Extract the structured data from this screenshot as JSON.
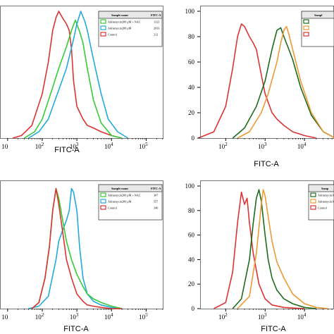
{
  "chart_data": [
    {
      "type": "line",
      "panel": "top-left",
      "xscale": "log",
      "xlabel": "FITC-A",
      "x_ticks": [
        "10",
        "10^2",
        "10^3",
        "10^4",
        "10^5"
      ],
      "y_ticks": [],
      "legend": {
        "placement": "top-right",
        "header": [
          "Sample name",
          "FITC-A"
        ],
        "rows": [
          {
            "name": "Adriamycin200 μM + NAC",
            "value": "1323",
            "color": "#33cc33"
          },
          {
            "name": "Adriamycin200 μM",
            "value": "2033",
            "color": "#22aadd"
          },
          {
            "name": "Control",
            "value": "312",
            "color": "#dd3333"
          }
        ]
      },
      "series": [
        {
          "color": "#dd3333",
          "x": [
            14,
            25,
            50,
            100,
            150,
            200,
            250,
            300,
            400,
            500,
            600,
            700,
            800,
            1000,
            1500,
            2000,
            3000,
            5000,
            10000,
            20000
          ],
          "y": [
            0,
            2,
            10,
            35,
            60,
            85,
            95,
            100,
            94,
            90,
            85,
            70,
            45,
            25,
            15,
            10,
            8,
            5,
            2,
            0
          ]
        },
        {
          "color": "#33cc33",
          "x": [
            30,
            60,
            100,
            200,
            300,
            500,
            700,
            900,
            1200,
            1500,
            2000,
            3000,
            5000,
            10000,
            20000
          ],
          "y": [
            0,
            5,
            15,
            40,
            55,
            72,
            85,
            93,
            84,
            75,
            55,
            30,
            12,
            2,
            0
          ]
        },
        {
          "color": "#22aadd",
          "x": [
            40,
            80,
            150,
            300,
            500,
            800,
            1000,
            1300,
            1700,
            2000,
            3000,
            5000,
            8000,
            15000,
            30000
          ],
          "y": [
            0,
            5,
            15,
            38,
            55,
            78,
            90,
            100,
            92,
            85,
            62,
            35,
            15,
            5,
            0
          ]
        }
      ]
    },
    {
      "type": "line",
      "panel": "top-right",
      "xscale": "log",
      "xlabel": "FITC-A",
      "x_ticks": [
        "10^2",
        "10^3",
        "10^4"
      ],
      "y_ticks": [
        "0",
        "20",
        "40",
        "60",
        "80",
        "100"
      ],
      "ylim": [
        0,
        100
      ],
      "legend": {
        "placement": "top-right",
        "header": [
          "Sampl"
        ],
        "rows": [
          {
            "name": "",
            "value": "",
            "color": "#1d6b1d"
          },
          {
            "name": "",
            "value": "",
            "color": "#ee9933"
          },
          {
            "name": "",
            "value": "",
            "color": "#dd3333"
          }
        ]
      },
      "series": [
        {
          "color": "#dd3333",
          "x": [
            20,
            50,
            100,
            150,
            200,
            250,
            300,
            400,
            500,
            600,
            800,
            1000,
            1500,
            2000,
            3000,
            5000,
            10000,
            20000
          ],
          "y": [
            0,
            5,
            25,
            55,
            80,
            90,
            88,
            80,
            75,
            70,
            50,
            35,
            20,
            15,
            10,
            5,
            2,
            0
          ]
        },
        {
          "color": "#1d6b1d",
          "x": [
            150,
            300,
            600,
            1000,
            1500,
            2000,
            2500,
            3000,
            4000,
            5000,
            8000,
            15000,
            30000,
            60000
          ],
          "y": [
            0,
            8,
            25,
            45,
            70,
            85,
            87,
            80,
            70,
            62,
            40,
            18,
            5,
            0
          ]
        },
        {
          "color": "#ee9933",
          "x": [
            200,
            400,
            800,
            1200,
            2000,
            2500,
            3000,
            3500,
            4000,
            5000,
            8000,
            15000,
            30000,
            60000
          ],
          "y": [
            0,
            5,
            20,
            35,
            60,
            75,
            85,
            88,
            82,
            70,
            45,
            20,
            5,
            0
          ]
        }
      ]
    },
    {
      "type": "line",
      "panel": "bottom-left",
      "xscale": "log",
      "xlabel": "FITC-A",
      "x_ticks": [
        "10",
        "10^2",
        "10^3",
        "10^4",
        "10^5"
      ],
      "y_ticks": [],
      "legend": {
        "placement": "top-right",
        "header": [
          "Sample name",
          "FITC-A"
        ],
        "rows": [
          {
            "name": "Adriamycin200 μM + NAC",
            "value": "307",
            "color": "#33cc33"
          },
          {
            "name": "Adriamycin200 μM",
            "value": "557",
            "color": "#22aadd"
          },
          {
            "name": "Control",
            "value": "340",
            "color": "#dd3333"
          }
        ]
      },
      "series": [
        {
          "color": "#22aadd",
          "x": [
            40,
            80,
            150,
            250,
            300,
            400,
            500,
            600,
            700,
            800,
            1000,
            1200,
            1500,
            2000,
            3000,
            5000,
            10000,
            20000
          ],
          "y": [
            0,
            2,
            10,
            40,
            55,
            65,
            72,
            80,
            98,
            95,
            80,
            50,
            25,
            12,
            6,
            3,
            1,
            0
          ]
        },
        {
          "color": "#33cc33",
          "x": [
            50,
            80,
            120,
            160,
            200,
            250,
            300,
            400,
            500,
            700,
            1000,
            1500,
            2000,
            3000,
            5000,
            10000,
            20000
          ],
          "y": [
            0,
            5,
            25,
            50,
            80,
            98,
            90,
            70,
            55,
            40,
            28,
            18,
            12,
            8,
            5,
            2,
            0
          ]
        },
        {
          "color": "#dd3333",
          "x": [
            50,
            80,
            120,
            160,
            200,
            250,
            300,
            400,
            500,
            700,
            1000,
            1500,
            2000,
            3000,
            5000,
            10000,
            20000
          ],
          "y": [
            0,
            5,
            25,
            50,
            80,
            98,
            85,
            60,
            40,
            25,
            12,
            6,
            3,
            2,
            1,
            0,
            0
          ]
        }
      ]
    },
    {
      "type": "line",
      "panel": "bottom-right",
      "xscale": "log",
      "xlabel": "FITC-A",
      "x_ticks": [
        "10^2",
        "10^3",
        "10^4"
      ],
      "y_ticks": [
        "0",
        "20",
        "40",
        "60",
        "80",
        "100"
      ],
      "ylim": [
        0,
        100
      ],
      "legend": {
        "placement": "top-right",
        "header": [
          "Samp"
        ],
        "rows": [
          {
            "name": "Adriamycin100 μ",
            "value": "",
            "color": "#1d6b1d"
          },
          {
            "name": "Adriamycin100 μ",
            "value": "",
            "color": "#ee9933"
          },
          {
            "name": "Control",
            "value": "",
            "color": "#dd3333"
          }
        ]
      },
      "series": [
        {
          "color": "#dd3333",
          "x": [
            50,
            100,
            150,
            200,
            250,
            300,
            350,
            400,
            500,
            700,
            1000,
            1500,
            3000,
            10000
          ],
          "y": [
            0,
            5,
            30,
            70,
            95,
            85,
            90,
            70,
            45,
            20,
            8,
            3,
            1,
            0
          ]
        },
        {
          "color": "#1d6b1d",
          "x": [
            150,
            250,
            400,
            500,
            600,
            700,
            800,
            1000,
            1200,
            1500,
            2000,
            3000,
            5000,
            10000,
            20000
          ],
          "y": [
            0,
            8,
            40,
            70,
            90,
            97,
            88,
            60,
            40,
            25,
            15,
            8,
            4,
            1,
            0
          ]
        },
        {
          "color": "#ee9933",
          "x": [
            200,
            400,
            600,
            800,
            900,
            1000,
            1200,
            1500,
            2000,
            3000,
            5000,
            10000,
            20000,
            40000
          ],
          "y": [
            0,
            10,
            45,
            85,
            97,
            92,
            75,
            55,
            38,
            25,
            12,
            4,
            1,
            0
          ]
        }
      ]
    }
  ]
}
